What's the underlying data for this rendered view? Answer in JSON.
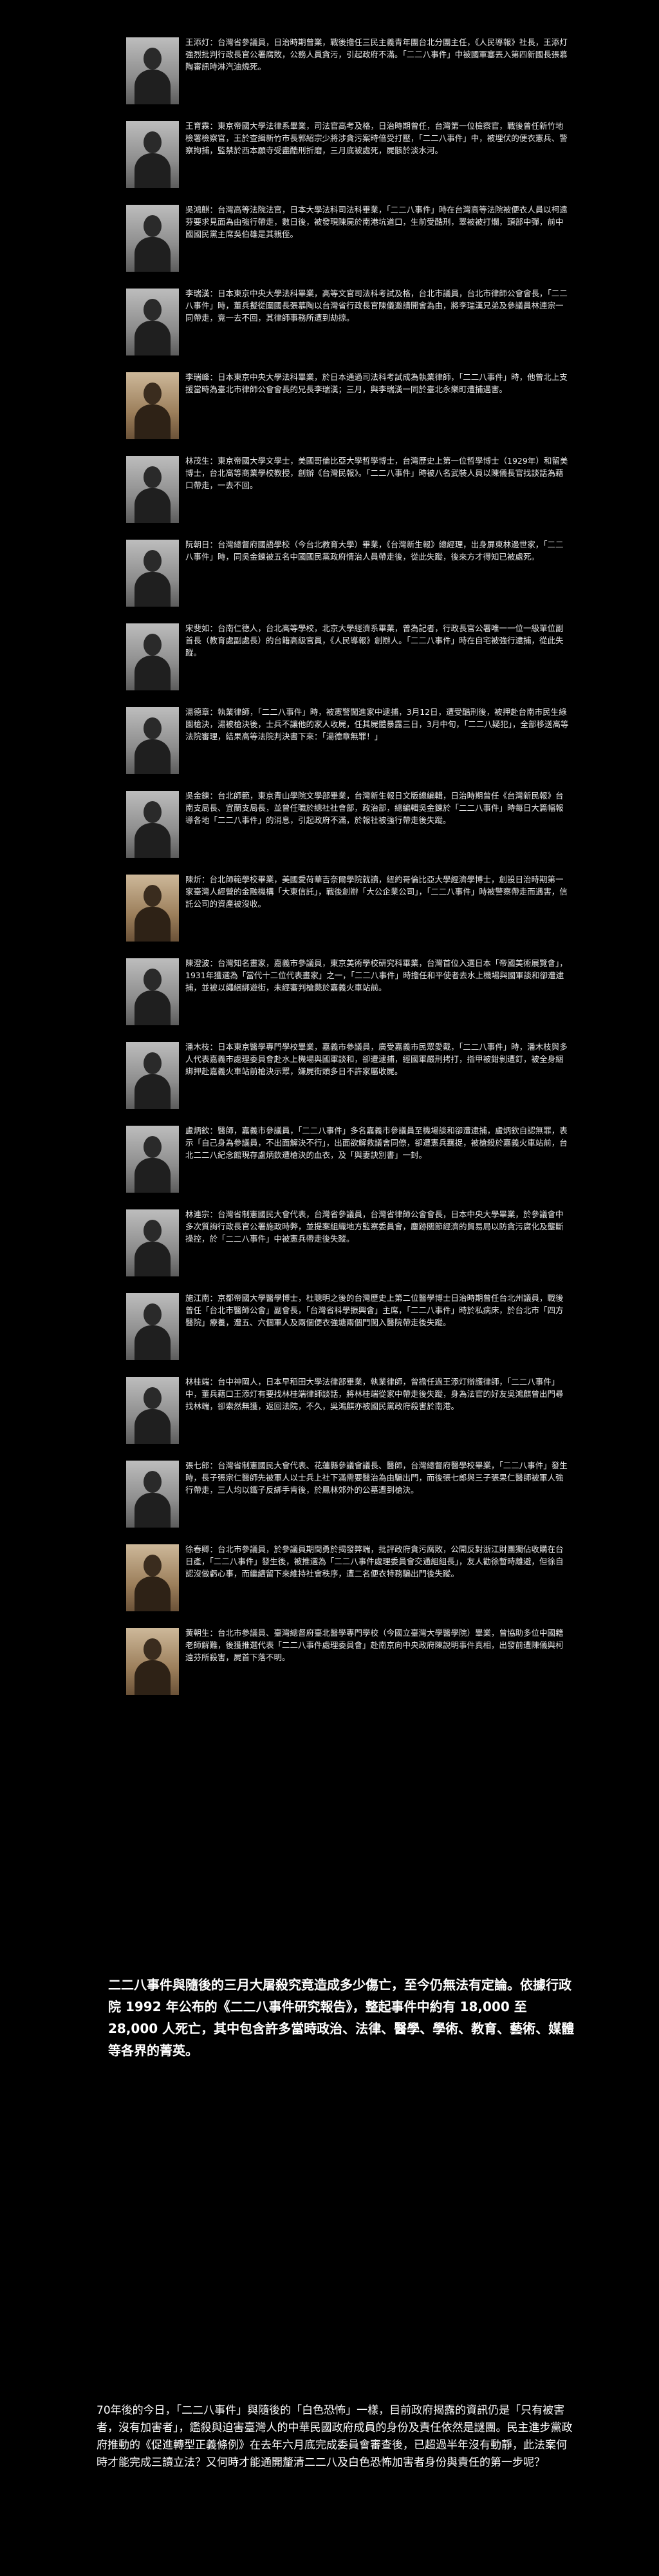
{
  "victims": [
    {
      "bio": "王添灯：台灣省參議員，日治時期曾業，戰後擔任三民主義青年團台北分團主任，《人民導報》社長，王添灯強烈批判行政長官公署腐敗，公務人員貪污，引起政府不滿。「二二八事件」中被國軍塞丟入第四新國長張慕陶審訊時淋汽油燒死。"
    },
    {
      "bio": "王育霖：東京帝國大學法律系畢業，司法官高考及格，日治時期曾任，台灣第一位檢察官，戰後曾任新竹地檢署檢察官，王於查緝新竹市長郭紹宗少將涉貪污案時倍受打壓，「二二八事件」中，被埋伏的便衣憲兵、警察拘捕，監禁於西本願寺受盡酷刑折磨，三月底被處死，屍骸於淡水河。"
    },
    {
      "bio": "吳鴻麒：台灣高等法院法官，日本大學法科司法科畢業，「二二八事件」時在台灣高等法院被便衣人員以柯遠芬要求見面為由強行帶走，數日後，被發現陳屍於南港坑道口，生前受酷刑，睪被被打爛，頭部中彈，前中國國民黨主席吳伯雄是其親侄。"
    },
    {
      "bio": "李瑞漢：日本東京中央大學法科畢業，高等文官司法科考試及格，台北市議員，台北市律師公會會長，「二二八事件」時，董兵擬從圍國長張慕陶以台灣省行政長官陳儀邀請開會為由，將李瑞漢兄弟及參議員林連宗一同帶走，竟一去不回，其律師事務所遭到劫掠。"
    },
    {
      "bio": "李瑞峰：日本東京中央大學法科畢業，於日本通過司法科考試成為執業律師，「二二八事件」時，他曾北上支援當時為臺北市律師公會會長的兄長李瑞漢；三月，與李瑞漢一同於臺北永樂町遭捕遇害。"
    },
    {
      "bio": "林茂生：東京帝國大學文學士，美國哥倫比亞大學哲學博士，台灣歷史上第一位哲學博士（1929年）和留美博士，台北高等商業學校教授，創辦《台灣民報》。「二二八事件」時被八名武裝人員以陳儀長官找談話為藉口帶走，一去不回。"
    },
    {
      "bio": "阮朝日：台灣總督府國語學校（今台北教育大學）畢業，《台灣新生報》總經理，出身屏東林邊世家，「二二八事件」時，同吳金鍊被五名中國國民黨政府情治人員帶走後，從此失蹤，後來方才得知已被處死。"
    },
    {
      "bio": "宋斐如：台南仁德人，台北高等學校，北京大學經濟系畢業，曾為記者，行政長官公署唯一一位一級單位副首長（教育處副處長）的台籍高級官員，《人民導報》創辦人。「二二八事件」時在自宅被強行逮捕，從此失蹤。"
    },
    {
      "bio": "湯德章：執業律師，「二二八事件」時，被憲警闖進家中逮捕，3月12日，遭受酷刑後，被押赴台南市民生綠園槍決，湯被槍決後，士兵不讓他的家人收屍，任其屍體暴露三日，3月中旬，「二二八疑犯」，全部移送高等法院審理，結果高等法院判決書下來：「湯德章無罪！」"
    },
    {
      "bio": "吳金鍊：台北師範，東京青山學院文學部畢業，台灣新生報日文版總編輯，日治時期曾任《台灣新民報》台南支局長、宜蘭支局長，並曾任職於總社社會部，政治部，總編輯吳金鍊於「二二八事件」時每日大篇幅報導各地「二二八事件」的消息，引起政府不滿，於報社被強行帶走後失蹤。"
    },
    {
      "bio": "陳炘：台北師範學校畢業，美國愛荷華吉奈爾學院就讀，紐約哥倫比亞大學經濟學博士，創設日治時期第一家臺灣人經營的金融機構「大東信託」，戰後創辦「大公企業公司」，「二二八事件」時被警察帶走而遇害，信託公司的資產被沒收。"
    },
    {
      "bio": "陳澄波：台灣知名畫家，嘉義市參議員，東京美術學校研究科畢業，台灣首位入選日本「帝國美術展覽會」，1931年獲選為「當代十二位代表畫家」之一，「二二八事件」時擔任和平使者去水上機場與國軍談和卻遭逮捕，並被以繩綑綁遊街，未經審判槍斃於嘉義火車站前。"
    },
    {
      "bio": "潘木枝：日本東京醫學專門學校畢業，嘉義市參議員，廣受嘉義市民眾愛戴，「二二八事件」時，潘木枝與多人代表嘉義市處理委員會赴水上機場與國軍談和，卻遭逮捕，經國軍嚴刑拷打，指甲被鉗剝遭釘，被全身綑綁押赴嘉義火車站前槍決示眾，嫌屍街頭多日不許家屬收屍。"
    },
    {
      "bio": "盧炳欽：醫師，嘉義市參議員，「二二八事件」多名嘉義市參議員至機場談和卻遭逮捕，盧炳欽自認無罪，表示「自己身為參議員，不出面解決不行」，出面欲解救議會同僚，卻遭憲兵羈捉，被槍殺於嘉義火車站前，台北二二八紀念館現存盧炳欽遭槍決的血衣，及「與妻訣別書」一封。"
    },
    {
      "bio": "林連宗：台灣省制憲國民大會代表，台灣省參議員，台灣省律師公會會長，日本中央大學畢業，於參議會中多次質詢行政長官公署施政時弊，並提案組織地方監察委員會，塵跡關節經濟的貿易局以防貪污腐化及壟斷操控，於「二二八事件」中被憲兵帶走後失蹤。"
    },
    {
      "bio": "施江南：京都帝國大學醫學博士，杜聰明之後的台灣歷史上第二位醫學博士日治時期曾任台北州議員，戰後曾任「台北市醫師公會」副會長，「台灣省科學振興會」主席，「二二八事件」時於私病床，於台北市「四方醫院」療養，遭五、六個軍人及兩個便衣強塘兩個門闖入醫院帶走後失蹤。"
    },
    {
      "bio": "林桂端：台中神岡人，日本早稻田大學法律部畢業，執業律師，曾擔任過王添灯辯護律師，「二二八事件」中，董兵藉口王添灯有要找林桂端律師談話，將林桂端從家中帶走後失蹤，身為法官的好友吳鴻麒曾出門尋找林端，卻索然無獲，返回法院，不久，吳鴻麒亦被國民黨政府殺害於南港。"
    },
    {
      "bio": "張七郎：台灣省制憲國民大會代表、花蓮縣參議會議長、醫師，台灣總督府醫學校畢業，「二二八事件」發生時，長子張宗仁醫師先被軍人以士兵上社下滿需要醫治為由騙出門，而後張七郎與三子張果仁醫師被軍人強行帶走，三人均以鐵子反綁手肯後，於鳳林郊外的公墓遭到槍決。"
    },
    {
      "bio": "徐春卿：台北市參議員，於參議員期間勇於揭發弊端，批評政府貪污腐敗，公開反對浙江財團獨佔收購在台日產，「二二八事件」發生後，被推選為「二二八事件處理委員會交通組組長」，友人勸徐暫時離避，但徐自認沒做虧心事，而繼續留下來維持社會秩序，遭二名便衣特務騙出門後失蹤。"
    },
    {
      "bio": "黃朝生：台北市參議員、臺灣總督府臺北醫學專門學校（今國立臺灣大學醫學院）畢業，曾協助多位中國籍老師解難，後獲推選代表「二二八事件處理委員會」赴南京向中央政府陳說明事件真相，出發前遭陳儀與柯遠芬所殺害，屍首下落不明。"
    }
  ],
  "summary": "二二八事件與隨後的三月大屠殺究竟造成多少傷亡，至今仍無法有定論。依據行政院 1992 年公布的《二二八事件研究報告》，整起事件中約有 18,000 至 28,000 人死亡，其中包含許多當時政治、法律、醫學、學術、教育、藝術、媒體等各界的菁英。",
  "closing": "70年後的今日，「二二八事件」與隨後的「白色恐怖」一樣，目前政府揭露的資訊仍是「只有被害者，沒有加害者」，鑑殺與迫害臺灣人的中華民國政府成員的身份及責任依然是謎團。民主進步黨政府推動的《促進轉型正義條例》在去年六月底完成委員會審查後，已超過半年沒有動靜，此法案何時才能完成三讀立法？又何時才能通開釐清二二八及白色恐怖加害者身份與責任的第一步呢？"
}
